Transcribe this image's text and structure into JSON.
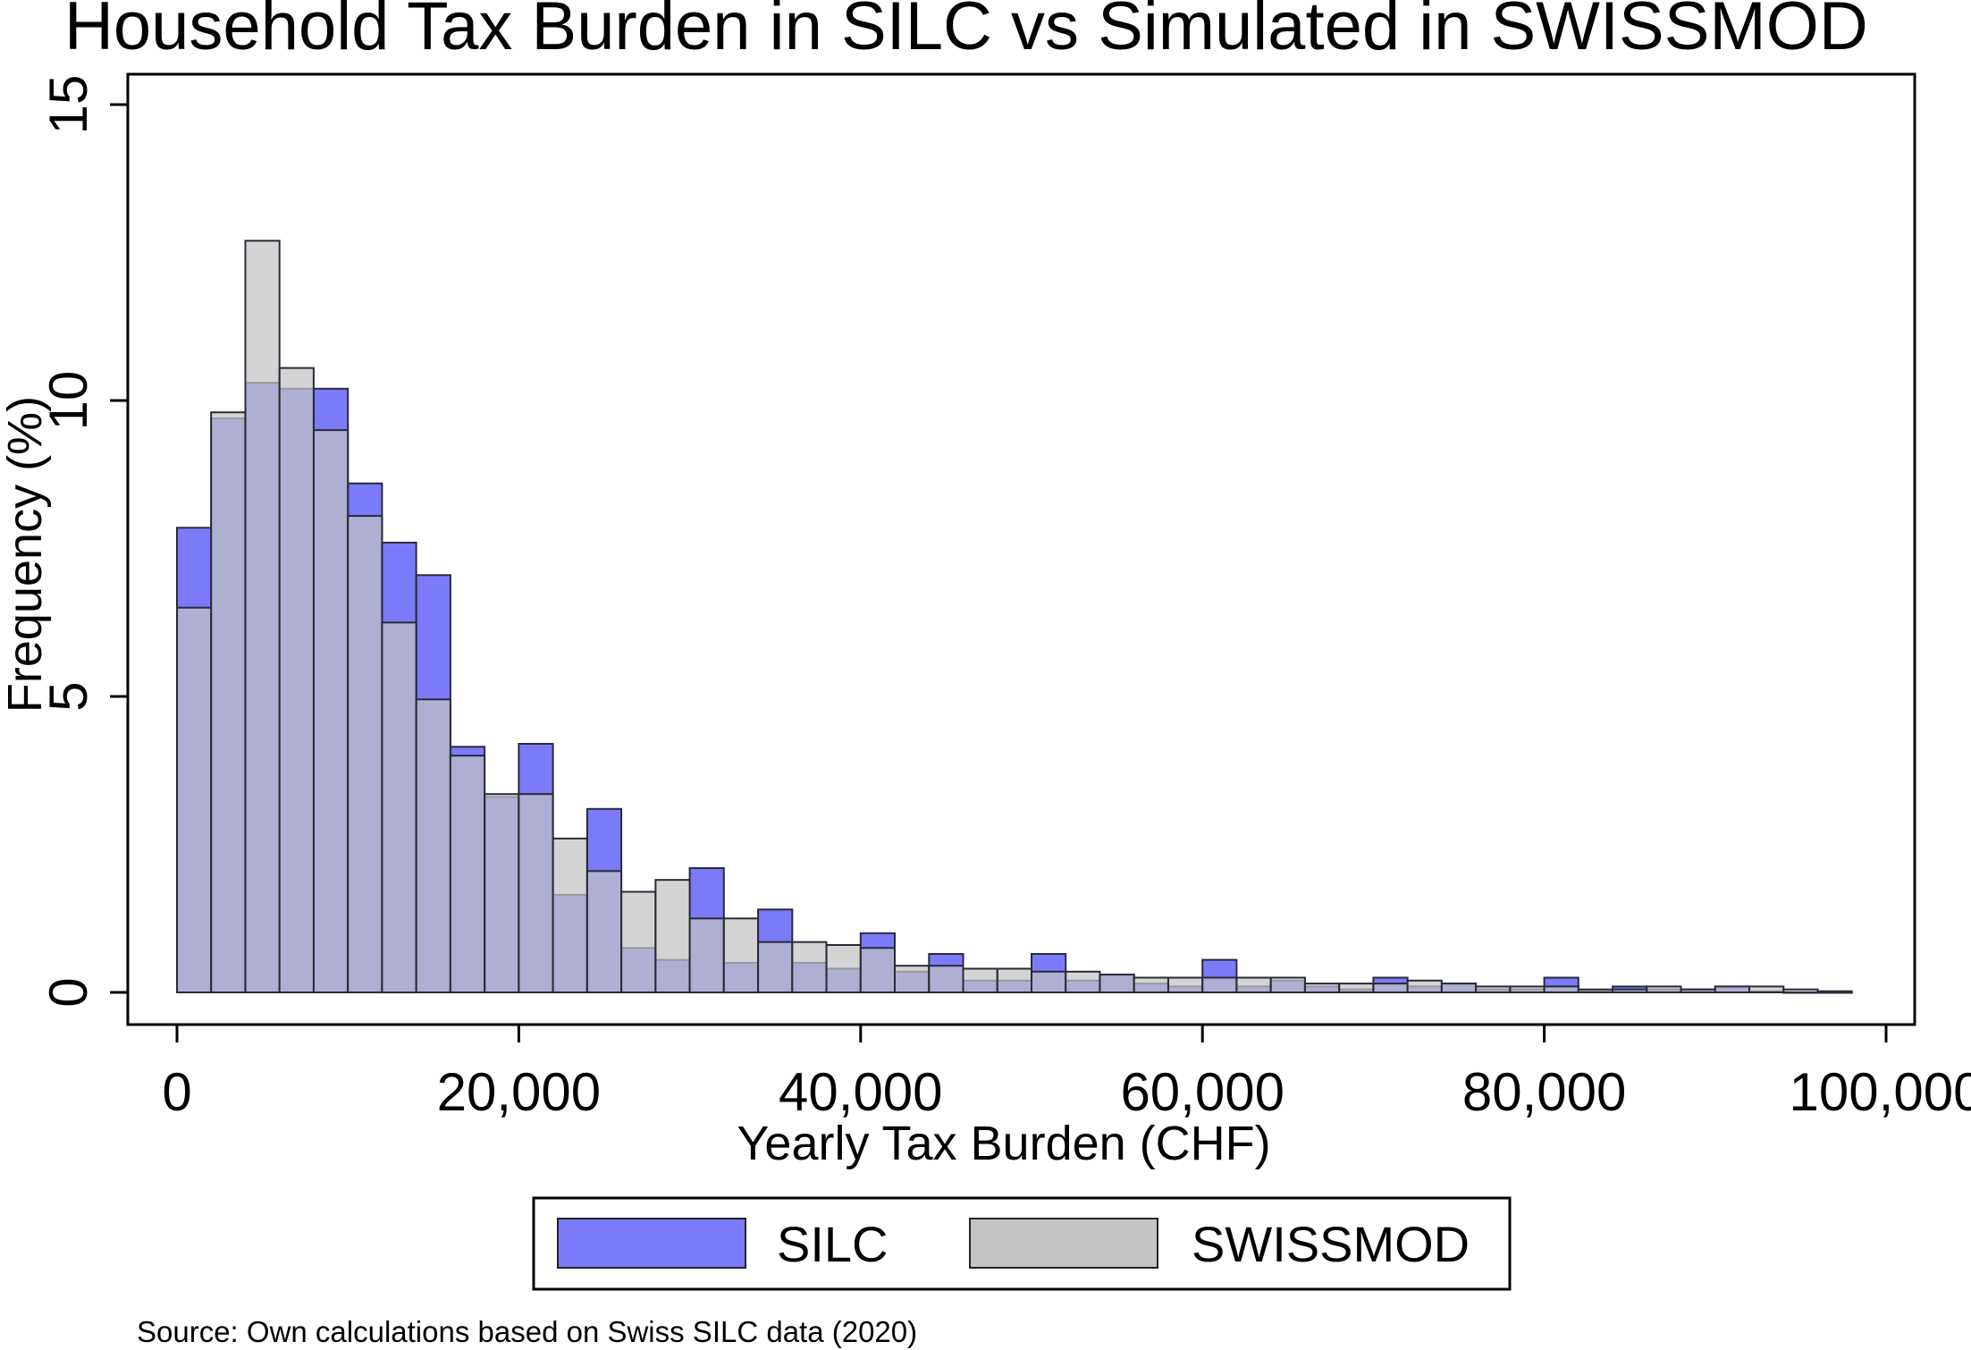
{
  "chart_data": {
    "type": "bar",
    "title": "Household Tax Burden in SILC vs Simulated in SWISSMOD",
    "xlabel": "Yearly Tax Burden (CHF)",
    "ylabel": "Frequency (%)",
    "xlim": [
      0,
      100000
    ],
    "ylim": [
      0,
      15
    ],
    "x_ticks": [
      0,
      20000,
      40000,
      60000,
      80000,
      100000
    ],
    "x_tick_labels": [
      "0",
      "20,000",
      "40,000",
      "60,000",
      "80,000",
      "100,000"
    ],
    "y_ticks": [
      0,
      5,
      10,
      15
    ],
    "y_tick_labels": [
      "0",
      "5",
      "10",
      "15"
    ],
    "bin_width": 2000,
    "bin_starts": [
      0,
      2000,
      4000,
      6000,
      8000,
      10000,
      12000,
      14000,
      16000,
      18000,
      20000,
      22000,
      24000,
      26000,
      28000,
      30000,
      32000,
      34000,
      36000,
      38000,
      40000,
      42000,
      44000,
      46000,
      48000,
      50000,
      52000,
      54000,
      56000,
      58000,
      60000,
      62000,
      64000,
      66000,
      68000,
      70000,
      72000,
      74000,
      76000,
      78000,
      80000,
      82000,
      84000,
      86000,
      88000,
      90000,
      92000,
      94000,
      96000
    ],
    "series": [
      {
        "name": "SILC",
        "color": "#7b7bf9",
        "values": [
          7.85,
          9.7,
          10.3,
          10.2,
          10.2,
          8.6,
          7.6,
          7.05,
          4.15,
          3.3,
          4.2,
          1.65,
          3.1,
          0.75,
          0.55,
          2.1,
          0.5,
          1.4,
          0.5,
          0.4,
          1.0,
          0.35,
          0.65,
          0.2,
          0.2,
          0.65,
          0.2,
          0.3,
          0.15,
          0.1,
          0.55,
          0.1,
          0.2,
          0.1,
          0.05,
          0.25,
          0.1,
          0.15,
          0.05,
          0.05,
          0.25,
          0.02,
          0.1,
          0.05,
          0.05,
          0.1,
          0.02,
          0.0,
          0.0
        ]
      },
      {
        "name": "SWISSMOD",
        "color": "#c4c4c4",
        "values": [
          6.5,
          9.8,
          12.7,
          10.55,
          9.5,
          8.05,
          6.25,
          4.95,
          4.0,
          3.35,
          3.35,
          2.6,
          2.05,
          1.7,
          1.9,
          1.25,
          1.25,
          0.85,
          0.85,
          0.8,
          0.75,
          0.45,
          0.45,
          0.4,
          0.4,
          0.35,
          0.35,
          0.3,
          0.25,
          0.25,
          0.25,
          0.25,
          0.25,
          0.15,
          0.15,
          0.15,
          0.2,
          0.15,
          0.1,
          0.1,
          0.1,
          0.05,
          0.05,
          0.1,
          0.05,
          0.1,
          0.1,
          0.05,
          0.02
        ]
      }
    ],
    "legend_position": "bottom"
  },
  "source_note": "Source: Own calculations based on Swiss SILC data (2020)"
}
